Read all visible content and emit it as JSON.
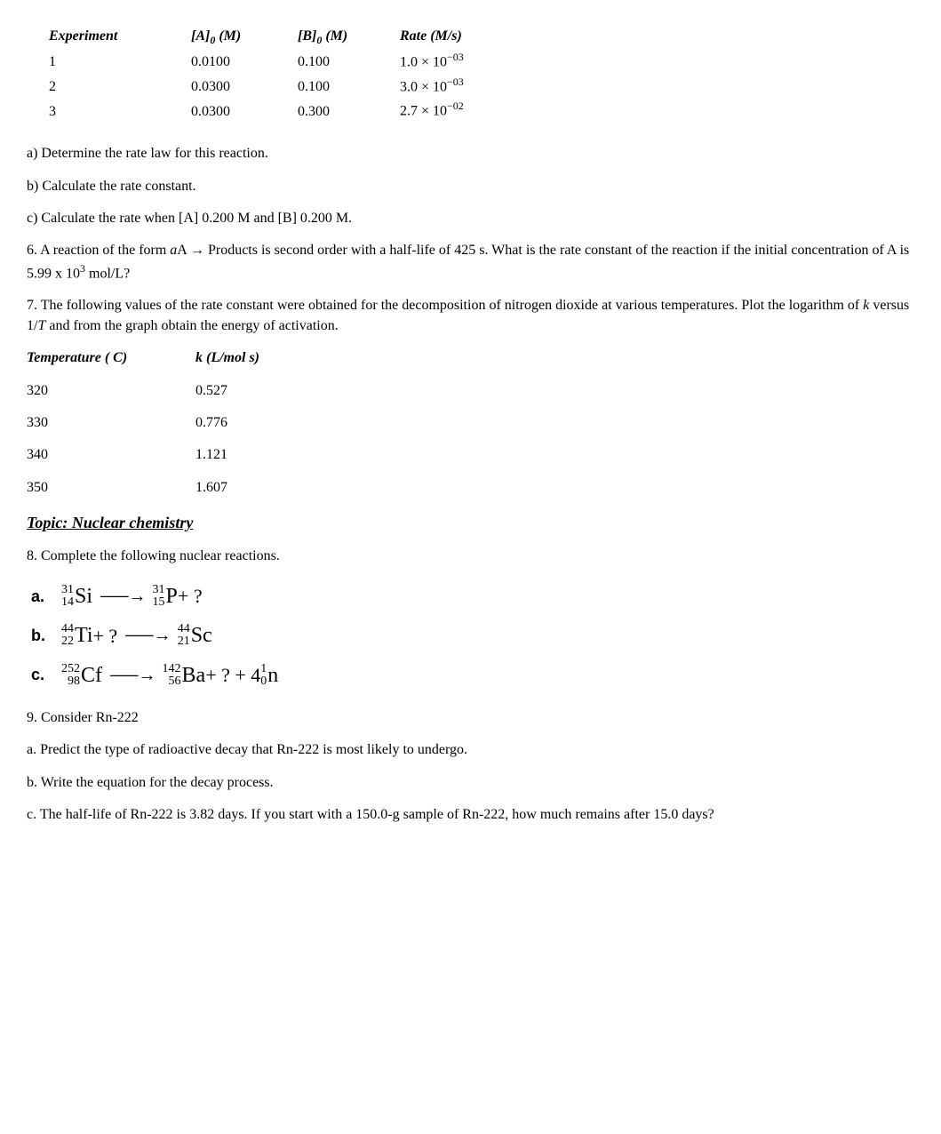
{
  "experiment_table": {
    "headers": {
      "col1": "Experiment",
      "col2_pre": "[A]",
      "col2_sub": "0",
      "col2_post": " (M)",
      "col3_pre": "[B]",
      "col3_sub": "0",
      "col3_post": " (M)",
      "col4_pre": "Rate ",
      "col4_post": "(M/s)"
    },
    "rows": [
      {
        "exp": "1",
        "a": "0.0100",
        "b": "0.100",
        "rate_m": "1.0",
        "rate_e": "−03"
      },
      {
        "exp": "2",
        "a": "0.0300",
        "b": "0.100",
        "rate_m": "3.0",
        "rate_e": "−03"
      },
      {
        "exp": "3",
        "a": "0.0300",
        "b": "0.300",
        "rate_m": "2.7",
        "rate_e": "−02"
      }
    ]
  },
  "q_a": "a) Determine the rate law for this reaction.",
  "q_b": "b) Calculate the rate constant.",
  "q_c": "c) Calculate the rate when [A] 0.200 M and [B] 0.200 M.",
  "q6_pre": "6. A reaction of the form ",
  "q6_aA": "a",
  "q6_mid": "A → Products is second order with a half-life of 425 s. What is the rate constant of the reaction if the initial concentration of A is 5.99 x 10",
  "q6_exp": "3",
  "q6_post": " mol/L?",
  "q7_pre": "7. The following values of the rate constant were obtained for the decomposition of nitrogen dioxide at various temperatures. Plot the logarithm of ",
  "q7_k": "k",
  "q7_mid": " versus 1/",
  "q7_T": "T",
  "q7_post": " and from the graph obtain the energy of activation.",
  "temp_table": {
    "headers": {
      "t": "Temperature ( C)",
      "k": "k (L/mol s)"
    },
    "rows": [
      {
        "t": "320",
        "k": "0.527"
      },
      {
        "t": "330",
        "k": "0.776"
      },
      {
        "t": "340",
        "k": "1.121"
      },
      {
        "t": "350",
        "k": "1.607"
      }
    ]
  },
  "topic": "Topic: Nuclear chemistry",
  "q8": "8. Complete the following nuclear reactions.",
  "eqns": {
    "a": {
      "label": "a.",
      "lhs": [
        {
          "mass": "31",
          "z": "14",
          "sym": "Si"
        }
      ],
      "arrow": "⸺→",
      "rhs_pre": [
        {
          "mass": "31",
          "z": "15",
          "sym": "P"
        }
      ],
      "rhs_tail": " + ?"
    },
    "b": {
      "label": "b.",
      "lhs": [
        {
          "mass": "44",
          "z": "22",
          "sym": "Ti"
        }
      ],
      "lhs_tail": " + ? ",
      "arrow": "⸺→",
      "rhs": [
        {
          "mass": "44",
          "z": "21",
          "sym": "Sc"
        }
      ]
    },
    "c": {
      "label": "c.",
      "lhs": [
        {
          "mass": "252",
          "z": "98",
          "sym": "Cf"
        }
      ],
      "arrow": "⸺→",
      "rhs": [
        {
          "mass": "142",
          "z": "56",
          "sym": "Ba"
        }
      ],
      "rhs_mid": " + ? + 4",
      "rhs_neutron": {
        "mass": "1",
        "z": "0",
        "sym": "n"
      }
    }
  },
  "q9": "9. Consider Rn-222",
  "q9a": "a. Predict the type of radioactive decay that Rn-222 is most likely to undergo.",
  "q9b": "b. Write the equation for the decay process.",
  "q9c": "c. The half-life of Rn-222 is 3.82 days. If you start with a 150.0-g sample of Rn-222, how much remains after 15.0 days?"
}
